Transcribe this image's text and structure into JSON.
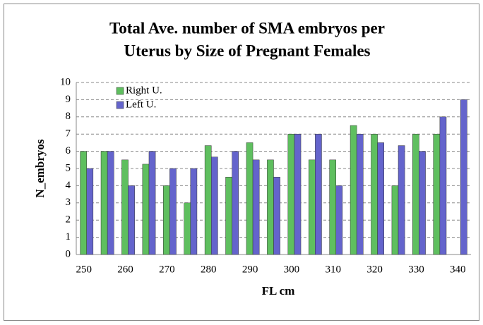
{
  "chart_data": {
    "type": "bar",
    "title": [
      "Total Ave. number of SMA  embryos per",
      "Uterus by Size of Pregnant Females"
    ],
    "xlabel": "FL cm",
    "ylabel": "N_embryos",
    "categories": [
      "250",
      null,
      "260",
      null,
      "270",
      null,
      "280",
      null,
      "290",
      null,
      "300",
      null,
      "310",
      null,
      "320",
      null,
      "330",
      null,
      "340"
    ],
    "series": [
      {
        "name": "Right U.",
        "color": "#5fbf5f",
        "values": [
          6,
          6,
          5.5,
          5.25,
          4,
          3,
          6.33,
          4.5,
          6.5,
          5.5,
          7,
          5.5,
          5.5,
          7.5,
          7,
          4,
          7,
          7,
          null
        ]
      },
      {
        "name": "Left U.",
        "color": "#6464cc",
        "values": [
          5,
          6,
          4,
          6,
          5,
          5,
          5.67,
          6,
          5.5,
          4.5,
          7,
          7,
          4,
          7,
          6.5,
          6.33,
          6,
          8,
          9
        ]
      }
    ],
    "ylim": [
      0,
      10
    ],
    "yticks": [
      0,
      1,
      2,
      3,
      4,
      5,
      6,
      7,
      8,
      9,
      10
    ],
    "grid": true,
    "legend": "top-left"
  }
}
